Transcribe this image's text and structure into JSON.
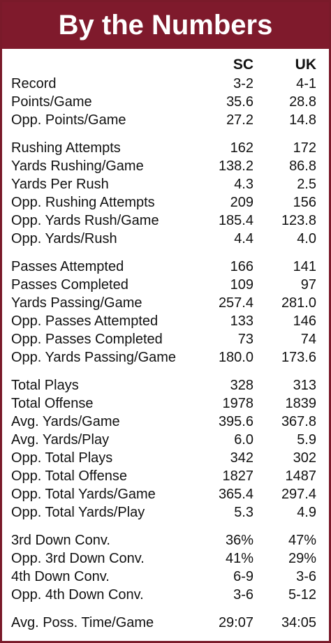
{
  "title": "By the Numbers",
  "columns": {
    "sc": "SC",
    "uk": "UK"
  },
  "rows": [
    {
      "label": "Record",
      "sc": "3-2",
      "uk": "4-1"
    },
    {
      "label": "Points/Game",
      "sc": "35.6",
      "uk": "28.8"
    },
    {
      "label": "Opp. Points/Game",
      "sc": "27.2",
      "uk": "14.8"
    },
    {
      "label": "Rushing Attempts",
      "sc": "162",
      "uk": "172"
    },
    {
      "label": "Yards Rushing/Game",
      "sc": "138.2",
      "uk": "86.8"
    },
    {
      "label": "Yards Per Rush",
      "sc": "4.3",
      "uk": "2.5"
    },
    {
      "label": "Opp. Rushing Attempts",
      "sc": "209",
      "uk": "156"
    },
    {
      "label": "Opp. Yards Rush/Game",
      "sc": "185.4",
      "uk": "123.8"
    },
    {
      "label": "Opp. Yards/Rush",
      "sc": "4.4",
      "uk": "4.0"
    },
    {
      "label": "Passes Attempted",
      "sc": "166",
      "uk": "141"
    },
    {
      "label": "Passes Completed",
      "sc": "109",
      "uk": "97"
    },
    {
      "label": "Yards Passing/Game",
      "sc": "257.4",
      "uk": "281.0"
    },
    {
      "label": "Opp. Passes Attempted",
      "sc": "133",
      "uk": "146"
    },
    {
      "label": "Opp. Passes Completed",
      "sc": "73",
      "uk": "74"
    },
    {
      "label": "Opp. Yards Passing/Game",
      "sc": "180.0",
      "uk": "173.6"
    },
    {
      "label": "Total Plays",
      "sc": "328",
      "uk": "313"
    },
    {
      "label": "Total Offense",
      "sc": "1978",
      "uk": "1839"
    },
    {
      "label": "Avg. Yards/Game",
      "sc": "395.6",
      "uk": "367.8"
    },
    {
      "label": "Avg. Yards/Play",
      "sc": "6.0",
      "uk": "5.9"
    },
    {
      "label": "Opp. Total Plays",
      "sc": "342",
      "uk": "302"
    },
    {
      "label": "Opp. Total Offense",
      "sc": "1827",
      "uk": "1487"
    },
    {
      "label": "Opp. Total Yards/Game",
      "sc": "365.4",
      "uk": "297.4"
    },
    {
      "label": "Opp. Total Yards/Play",
      "sc": "5.3",
      "uk": "4.9"
    },
    {
      "label": "3rd Down Conv.",
      "sc": "36%",
      "uk": "47%"
    },
    {
      "label": "Opp. 3rd Down Conv.",
      "sc": "41%",
      "uk": "29%"
    },
    {
      "label": "4th Down Conv.",
      "sc": "6-9",
      "uk": "3-6"
    },
    {
      "label": "Opp. 4th Down Conv.",
      "sc": "3-6",
      "uk": "5-12"
    },
    {
      "label": "Avg. Poss. Time/Game",
      "sc": "29:07",
      "uk": "34:05"
    }
  ],
  "theme": {
    "header_bg": "#7f1a2c",
    "header_text": "#ffffff"
  }
}
